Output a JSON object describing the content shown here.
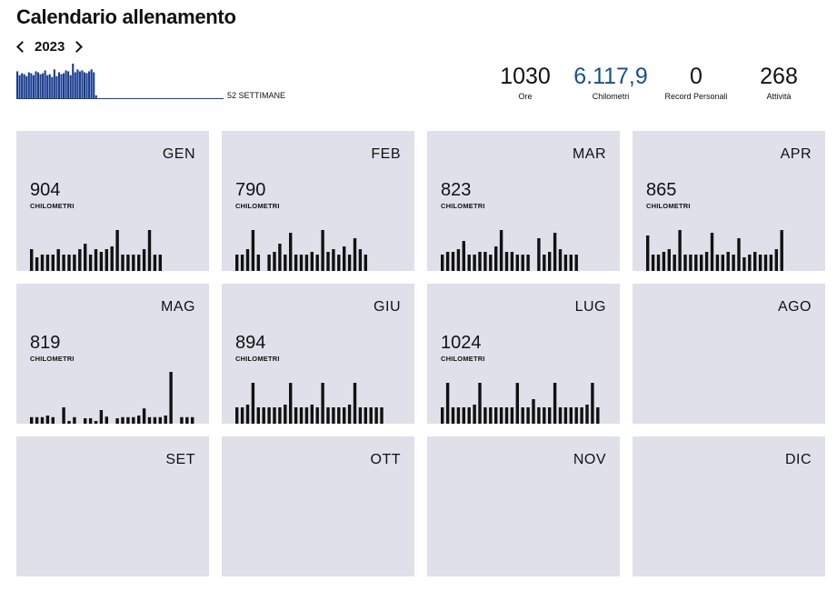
{
  "header": {
    "title": "Calendario allenamento",
    "year": "2023"
  },
  "weekly_chart": {
    "label": "52 SETTIMANE",
    "bar_color": "#1a3d8f",
    "baseline_color": "#1a3d8f",
    "max": 36,
    "values": [
      28,
      24,
      26,
      25,
      23,
      27,
      26,
      24,
      28,
      27,
      25,
      26,
      29,
      24,
      25,
      22,
      30,
      23,
      27,
      25,
      26,
      29,
      28,
      24,
      36,
      27,
      30,
      28,
      29,
      27,
      26,
      28,
      30,
      27,
      3,
      0,
      0,
      0,
      0,
      0,
      0,
      0,
      0,
      0,
      0,
      0,
      0,
      0,
      0,
      0,
      0,
      0
    ]
  },
  "stats": [
    {
      "value": "1030",
      "label": "Ore",
      "accent": false
    },
    {
      "value": "6.117,9",
      "label": "Chilometri",
      "accent": true
    },
    {
      "value": "0",
      "label": "Record Personali",
      "accent": false
    },
    {
      "value": "268",
      "label": "Attività",
      "accent": false
    }
  ],
  "months": [
    {
      "name": "GEN",
      "km": "904",
      "km_label": "CHILOMETRI",
      "bars": [
        0.4,
        0.25,
        0.3,
        0.3,
        0.3,
        0.4,
        0.3,
        0.3,
        0.3,
        0.4,
        0.5,
        0.3,
        0.4,
        0.35,
        0.4,
        0.45,
        0.75,
        0.3,
        0.3,
        0.3,
        0.3,
        0.4,
        0.75,
        0.3,
        0.3
      ]
    },
    {
      "name": "FEB",
      "km": "790",
      "km_label": "CHILOMETRI",
      "bars": [
        0.3,
        0.3,
        0.4,
        0.75,
        0.3,
        0,
        0.3,
        0.35,
        0.5,
        0.3,
        0.7,
        0.3,
        0.3,
        0.3,
        0.35,
        0.3,
        0.75,
        0.35,
        0.4,
        0.3,
        0.45,
        0.3,
        0.6,
        0.4,
        0.3
      ]
    },
    {
      "name": "MAR",
      "km": "823",
      "km_label": "CHILOMETRI",
      "bars": [
        0.3,
        0.35,
        0.35,
        0.4,
        0.55,
        0.3,
        0.3,
        0.35,
        0.35,
        0.3,
        0.45,
        0.75,
        0.35,
        0.35,
        0.3,
        0.3,
        0.3,
        0,
        0.6,
        0.3,
        0.35,
        0.7,
        0.4,
        0.3,
        0.3,
        0.3
      ]
    },
    {
      "name": "APR",
      "km": "865",
      "km_label": "CHILOMETRI",
      "bars": [
        0.65,
        0.3,
        0.3,
        0.35,
        0.4,
        0.3,
        0.75,
        0.3,
        0.3,
        0.3,
        0.3,
        0.35,
        0.7,
        0.3,
        0.3,
        0.35,
        0.3,
        0.6,
        0.25,
        0.3,
        0.35,
        0.3,
        0.3,
        0.3,
        0.4,
        0.75
      ]
    },
    {
      "name": "MAG",
      "km": "819",
      "km_label": "CHILOMETRI",
      "bars": [
        0.12,
        0.12,
        0.12,
        0.15,
        0.12,
        0,
        0.3,
        0.05,
        0.12,
        0,
        0.1,
        0.1,
        0.05,
        0.25,
        0.13,
        0,
        0.1,
        0.12,
        0.12,
        0.12,
        0.15,
        0.28,
        0.12,
        0.12,
        0.12,
        0.15,
        0.95,
        0,
        0.12,
        0.12,
        0.12
      ]
    },
    {
      "name": "GIU",
      "km": "894",
      "km_label": "CHILOMETRI",
      "bars": [
        0.3,
        0.3,
        0.35,
        0.75,
        0.3,
        0.3,
        0.3,
        0.3,
        0.3,
        0.35,
        0.75,
        0.3,
        0.3,
        0.3,
        0.35,
        0.3,
        0.75,
        0.3,
        0.3,
        0.3,
        0.3,
        0.35,
        0.75,
        0.3,
        0.3,
        0.3,
        0.3,
        0.3
      ]
    },
    {
      "name": "LUG",
      "km": "1024",
      "km_label": "CHILOMETRI",
      "bars": [
        0.3,
        0.75,
        0.3,
        0.3,
        0.3,
        0.3,
        0.35,
        0.75,
        0.3,
        0.3,
        0.3,
        0.3,
        0.3,
        0.3,
        0.75,
        0.3,
        0.3,
        0.45,
        0.3,
        0.3,
        0.3,
        0.75,
        0.3,
        0.3,
        0.3,
        0.3,
        0.3,
        0.35,
        0.75,
        0.3
      ]
    },
    {
      "name": "AGO",
      "km": "",
      "km_label": "",
      "bars": []
    },
    {
      "name": "SET",
      "km": "",
      "km_label": "",
      "bars": []
    },
    {
      "name": "OTT",
      "km": "",
      "km_label": "",
      "bars": []
    },
    {
      "name": "NOV",
      "km": "",
      "km_label": "",
      "bars": []
    },
    {
      "name": "DIC",
      "km": "",
      "km_label": "",
      "bars": []
    }
  ]
}
